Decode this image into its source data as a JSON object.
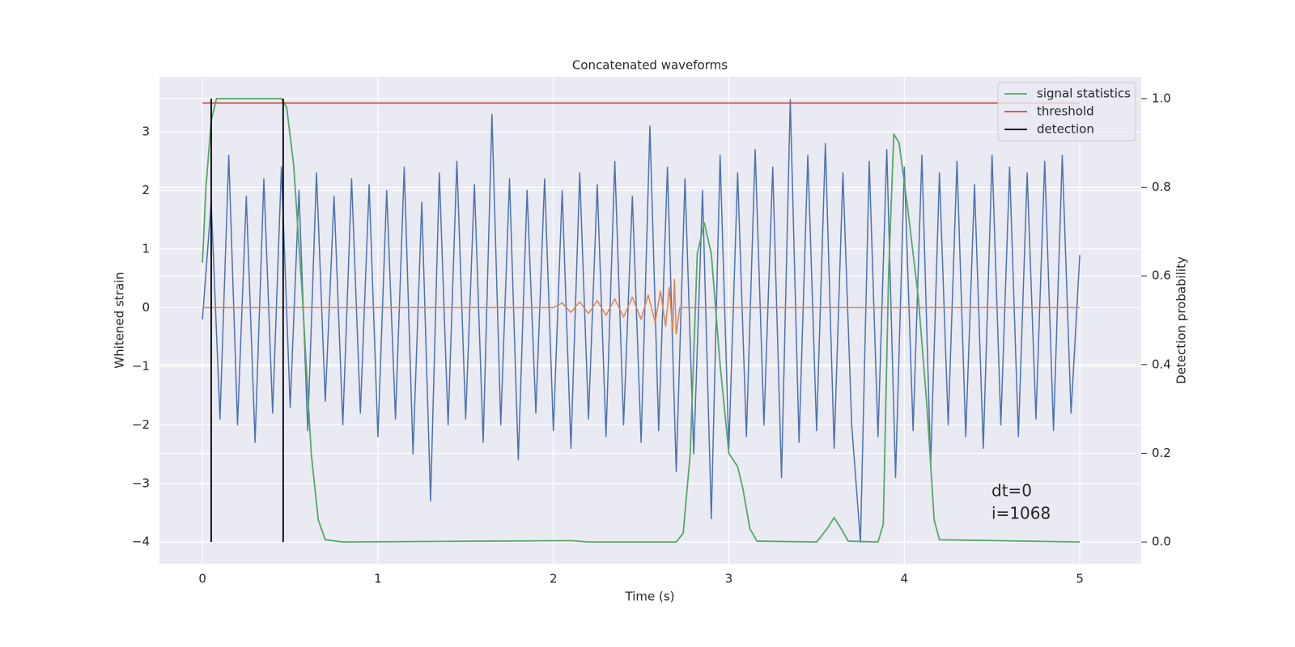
{
  "chart_data": {
    "type": "line",
    "title": "Concatenated waveforms",
    "xlabel": "Time (s)",
    "ylabel": "Whitened strain",
    "y2label": "Detection probability",
    "xlim": [
      -0.245,
      5.35
    ],
    "ylim": [
      -4.37,
      3.94
    ],
    "y2lim": [
      -0.049,
      1.049
    ],
    "xticks": [
      0,
      1,
      2,
      3,
      4,
      5
    ],
    "yticks": [
      {
        "value": -4,
        "label": "−4"
      },
      {
        "value": -3,
        "label": "−3"
      },
      {
        "value": -2,
        "label": "−2"
      },
      {
        "value": -1,
        "label": "−1"
      },
      0,
      1,
      2,
      3
    ],
    "y2ticks": [
      {
        "value": 0,
        "label": "0.0"
      },
      {
        "value": 0.2,
        "label": "0.2"
      },
      {
        "value": 0.4,
        "label": "0.4"
      },
      {
        "value": 0.6,
        "label": "0.6"
      },
      {
        "value": 0.8,
        "label": "0.8"
      },
      {
        "value": 1,
        "label": "1.0"
      }
    ],
    "grid": true,
    "background": "#eaeaf2",
    "legend": "upper right",
    "annotations": [
      "dt=0",
      "i=1068"
    ],
    "series": [
      {
        "color": "#4c72b0",
        "x": [
          0,
          0.05,
          0.1,
          0.15,
          0.2,
          0.25,
          0.3,
          0.35,
          0.4,
          0.45,
          0.5,
          0.55,
          0.6,
          0.65,
          0.7,
          0.75,
          0.8,
          0.85,
          0.9,
          0.95,
          1,
          1.05,
          1.1,
          1.15,
          1.2,
          1.25,
          1.3,
          1.35,
          1.4,
          1.45,
          1.5,
          1.55,
          1.6,
          1.65,
          1.7,
          1.75,
          1.8,
          1.85,
          1.9,
          1.95,
          2,
          2.05,
          2.1,
          2.15,
          2.2,
          2.25,
          2.3,
          2.35,
          2.4,
          2.45,
          2.5,
          2.55,
          2.6,
          2.65,
          2.7,
          2.75,
          2.8,
          2.85,
          2.9,
          2.95,
          3,
          3.05,
          3.1,
          3.15,
          3.2,
          3.25,
          3.3,
          3.35,
          3.4,
          3.45,
          3.5,
          3.55,
          3.6,
          3.65,
          3.7,
          3.75,
          3.8,
          3.85,
          3.9,
          3.95,
          4,
          4.05,
          4.1,
          4.15,
          4.2,
          4.25,
          4.3,
          4.35,
          4.4,
          4.45,
          4.5,
          4.55,
          4.6,
          4.65,
          4.7,
          4.75,
          4.8,
          4.85,
          4.9,
          4.95,
          5
        ],
        "values": [
          -0.2,
          1.8,
          -1.9,
          2.6,
          -2.0,
          1.9,
          -2.3,
          2.2,
          -1.8,
          2.4,
          -1.7,
          2.0,
          -2.1,
          2.3,
          -1.6,
          1.9,
          -2.0,
          2.2,
          -1.8,
          2.1,
          -2.2,
          2.0,
          -1.9,
          2.4,
          -2.5,
          1.8,
          -3.3,
          2.3,
          -2.0,
          2.5,
          -1.9,
          2.1,
          -2.3,
          3.3,
          -2.0,
          2.2,
          -2.6,
          2.0,
          -1.8,
          2.2,
          -2.1,
          2.0,
          -2.4,
          2.3,
          -1.9,
          2.1,
          -2.2,
          2.5,
          -2.0,
          1.9,
          -2.3,
          3.1,
          -2.1,
          2.4,
          -2.8,
          2.2,
          -2.5,
          2.0,
          -3.6,
          2.6,
          -2.4,
          2.3,
          -2.2,
          2.7,
          -2.0,
          2.4,
          -2.9,
          3.55,
          -2.3,
          2.6,
          -2.1,
          2.8,
          -2.4,
          2.3,
          -2.0,
          -4.0,
          2.5,
          -2.2,
          2.7,
          -2.9,
          2.4,
          -2.1,
          2.6,
          -2.7,
          2.3,
          -2.0,
          2.5,
          -2.2,
          2.1,
          -2.4,
          2.6,
          -2.0,
          2.4,
          -2.2,
          2.3,
          -1.9,
          2.5,
          -2.1,
          2.6,
          -1.8,
          0.9
        ]
      },
      {
        "color": "#dd8452",
        "x": [
          0,
          2.0,
          2.05,
          2.1,
          2.15,
          2.2,
          2.25,
          2.3,
          2.35,
          2.4,
          2.45,
          2.5,
          2.54,
          2.58,
          2.61,
          2.64,
          2.66,
          2.68,
          2.69,
          2.7,
          2.72,
          5
        ],
        "values": [
          0,
          0,
          0.08,
          -0.08,
          0.1,
          -0.1,
          0.12,
          -0.13,
          0.15,
          -0.16,
          0.18,
          -0.2,
          0.22,
          -0.25,
          0.28,
          -0.32,
          0.35,
          -0.42,
          0.48,
          -0.45,
          0,
          0
        ]
      },
      {
        "name": "signal statistics",
        "color": "#55a868",
        "axis": "y2",
        "x": [
          0,
          0.02,
          0.05,
          0.08,
          0.45,
          0.48,
          0.52,
          0.57,
          0.62,
          0.66,
          0.7,
          0.8,
          2.1,
          2.2,
          2.7,
          2.74,
          2.78,
          2.82,
          2.86,
          2.9,
          2.95,
          3.0,
          3.05,
          3.08,
          3.12,
          3.16,
          3.5,
          3.56,
          3.6,
          3.64,
          3.68,
          3.85,
          3.88,
          3.91,
          3.94,
          3.97,
          4.02,
          4.08,
          4.13,
          4.17,
          4.2,
          5.0
        ],
        "values": [
          0.63,
          0.8,
          0.95,
          1.0,
          1.0,
          0.98,
          0.85,
          0.55,
          0.2,
          0.05,
          0.005,
          0,
          0.003,
          0,
          0,
          0.02,
          0.2,
          0.65,
          0.72,
          0.65,
          0.4,
          0.2,
          0.17,
          0.12,
          0.03,
          0.002,
          0,
          0.03,
          0.055,
          0.03,
          0.002,
          0,
          0.04,
          0.6,
          0.92,
          0.9,
          0.75,
          0.55,
          0.3,
          0.05,
          0.005,
          0
        ]
      },
      {
        "name": "threshold",
        "color": "#c44e52",
        "axis": "y2",
        "x": [
          0,
          5
        ],
        "values": [
          0.99,
          0.99
        ]
      },
      {
        "name": "detection",
        "color": "#000000",
        "axis": "y2",
        "kind": "vlines",
        "x": [
          0.05,
          0.46
        ],
        "values": [
          1,
          1
        ]
      }
    ]
  }
}
